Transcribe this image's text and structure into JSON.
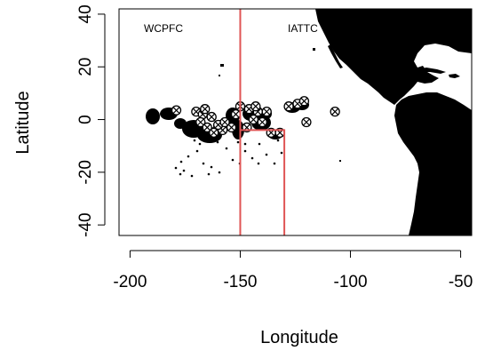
{
  "chart_data": {
    "type": "scatter",
    "title": "",
    "xlabel": "Longitude",
    "ylabel": "Latitude",
    "xlim": [
      -205,
      -45
    ],
    "ylim": [
      -44,
      42
    ],
    "xticks": [
      -200,
      -150,
      -100,
      -50
    ],
    "yticks": [
      -40,
      -20,
      0,
      20,
      40
    ],
    "xtick_labels": [
      "-200",
      "-150",
      "-100",
      "-50"
    ],
    "ytick_labels": [
      "-40",
      "-20",
      "0",
      "20",
      "40"
    ],
    "grid": false,
    "legend": "none",
    "region_labels": [
      {
        "text": "WCPFC",
        "lon": -178,
        "lat": 37
      },
      {
        "text": "IATTC",
        "lon": -127,
        "lat": 37
      }
    ],
    "boundary_color": "#e05555",
    "boundary_lines": [
      [
        [
          -150,
          44
        ],
        [
          -150,
          -44
        ]
      ],
      [
        [
          -150,
          -4
        ],
        [
          -130,
          -4
        ],
        [
          -130,
          -44
        ]
      ]
    ],
    "marker_symbol": "circle-x",
    "points": [
      {
        "lon": -179,
        "lat": 3.5
      },
      {
        "lon": -170,
        "lat": 3
      },
      {
        "lon": -167,
        "lat": 2
      },
      {
        "lon": -163,
        "lat": 1
      },
      {
        "lon": -168,
        "lat": -1
      },
      {
        "lon": -165,
        "lat": -3
      },
      {
        "lon": -162,
        "lat": -5
      },
      {
        "lon": -158,
        "lat": -4
      },
      {
        "lon": -160,
        "lat": -2
      },
      {
        "lon": -154,
        "lat": -3
      },
      {
        "lon": -150,
        "lat": 5
      },
      {
        "lon": -146,
        "lat": 4
      },
      {
        "lon": -142,
        "lat": 3
      },
      {
        "lon": -138,
        "lat": 3
      },
      {
        "lon": -144,
        "lat": 0
      },
      {
        "lon": -140,
        "lat": -1
      },
      {
        "lon": -147,
        "lat": -3
      },
      {
        "lon": -136,
        "lat": -5
      },
      {
        "lon": -132,
        "lat": -5
      },
      {
        "lon": -128,
        "lat": 5
      },
      {
        "lon": -124,
        "lat": 6
      },
      {
        "lon": -121,
        "lat": 7
      },
      {
        "lon": -120,
        "lat": -1
      },
      {
        "lon": -107,
        "lat": 3
      },
      {
        "lon": -152,
        "lat": 2
      },
      {
        "lon": -143,
        "lat": 5
      },
      {
        "lon": -166,
        "lat": 4
      },
      {
        "lon": -157,
        "lat": -1
      }
    ]
  }
}
